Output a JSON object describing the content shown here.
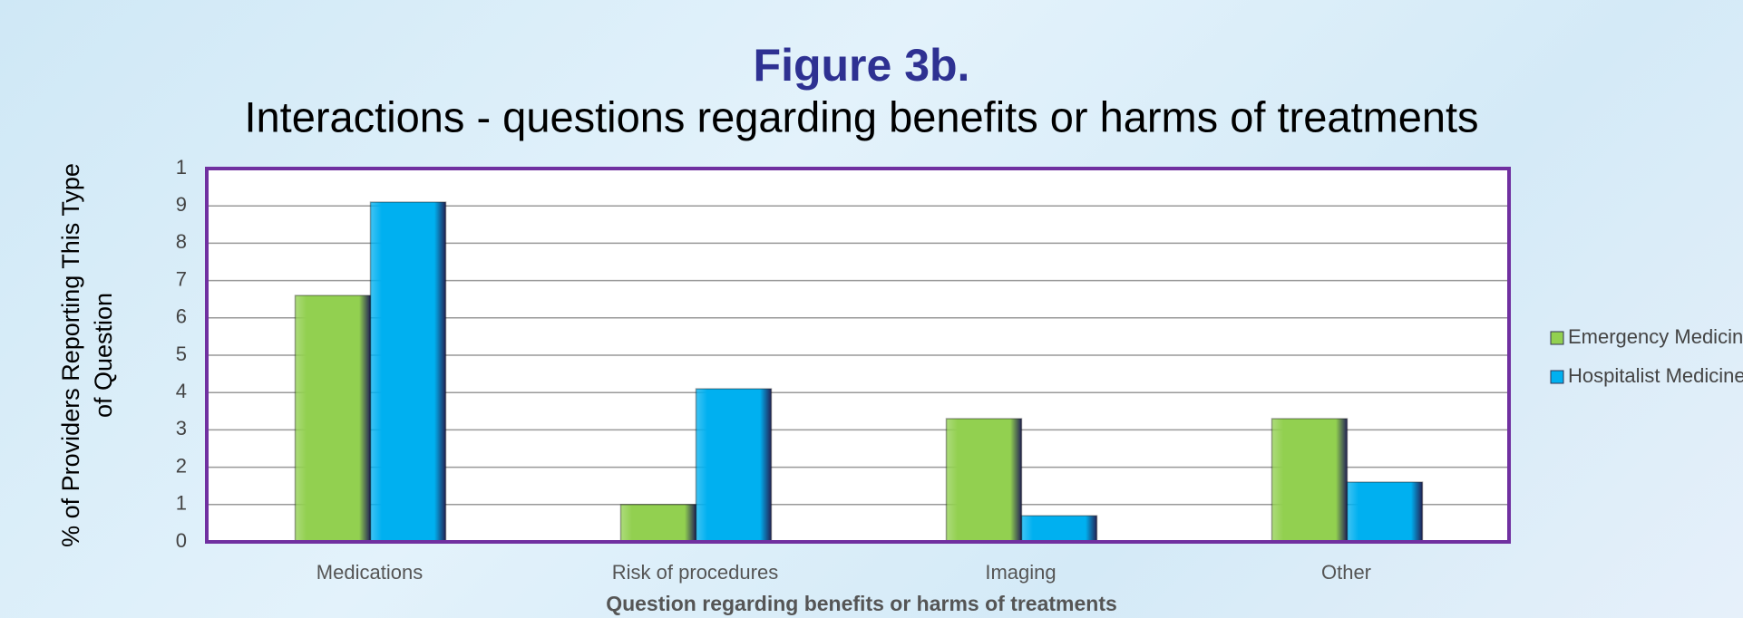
{
  "chart_data": {
    "type": "bar",
    "title": "Figure 3b.",
    "subtitle": "Interactions - questions regarding benefits or harms of treatments",
    "x_label": "Question regarding benefits or harms of treatments",
    "y_label": [
      "% of Providers Reporting This Type",
      "of Question"
    ],
    "categories": [
      "Medications",
      "Risk of procedures",
      "Imaging",
      "Other"
    ],
    "series": [
      {
        "name": "Emergency Medicin",
        "color": "#92d050",
        "values": [
          6.6,
          1.0,
          3.3,
          3.3
        ]
      },
      {
        "name": "Hospitalist Medicine",
        "color": "#00b0f0",
        "values": [
          9.1,
          4.1,
          0.7,
          1.6
        ]
      }
    ],
    "ylim": [
      0,
      10
    ],
    "yticks": [
      0,
      1,
      2,
      3,
      4,
      5,
      6,
      7,
      8,
      9,
      {
        "value": 10,
        "label": "1"
      }
    ],
    "grid": true,
    "legend": "right"
  }
}
